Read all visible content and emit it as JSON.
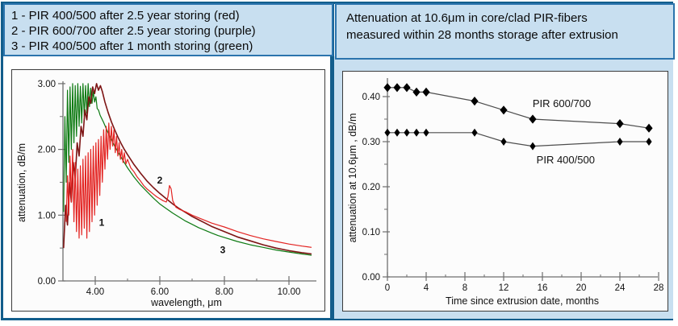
{
  "colors": {
    "background": "#ffffff",
    "cell_blue": "#c8dff0",
    "frame": "#135e8c",
    "header_border": "#2b74ad",
    "panel_border": "#3c3c3c",
    "axis": "#6e6e6e",
    "text": "#111111",
    "series_red": "#e32321",
    "series_maroon": "#7d1414",
    "series_green": "#0d7a12",
    "marker": "#000000",
    "aging_line": "#4d4d4d"
  },
  "header_left": {
    "lines": [
      "1 - PIR 400/500 after 2.5 year storing (red)",
      "2 - PIR 600/700 after 2.5 year storing (purple)",
      "3 - PIR 400/500 after 1 month storing (green)"
    ]
  },
  "header_right": {
    "lines": [
      "Attenuation at 10.6μm in core/clad PIR-fibers",
      "measured within 28 months storage after extrusion"
    ]
  },
  "chart_data": [
    {
      "type": "line",
      "title": "",
      "xlabel": "wavelength, μm",
      "ylabel": "attenuation, dB/m",
      "xlim": [
        2.9,
        10.85
      ],
      "ylim": [
        0,
        3.0
      ],
      "grid": false,
      "x_ticks_major": {
        "values": [
          4,
          6,
          8,
          10
        ],
        "labels": [
          "4.00",
          "6.00",
          "8.00",
          "10.00"
        ]
      },
      "x_ticks_minor": [
        5,
        7,
        9
      ],
      "y_ticks_major": {
        "values": [
          0,
          1,
          2,
          3
        ],
        "labels": [
          "0.00",
          "1.00",
          "2.00",
          "3.00"
        ]
      },
      "y_ticks_minor": [
        0.5,
        1.5,
        2.5
      ],
      "series": [
        {
          "name": "PIR 400/500 after 1 month storing",
          "label": "3",
          "label_pos": [
            7.95,
            0.42
          ],
          "color": "#0d7a12",
          "points": [
            [
              3.02,
              1.05
            ],
            [
              3.06,
              2.5
            ],
            [
              3.1,
              1.5
            ],
            [
              3.14,
              2.9
            ],
            [
              3.18,
              1.8
            ],
            [
              3.22,
              2.95
            ],
            [
              3.26,
              2.0
            ],
            [
              3.3,
              3.0
            ],
            [
              3.34,
              2.1
            ],
            [
              3.38,
              2.97
            ],
            [
              3.42,
              2.2
            ],
            [
              3.46,
              3.0
            ],
            [
              3.5,
              2.35
            ],
            [
              3.54,
              2.96
            ],
            [
              3.58,
              2.4
            ],
            [
              3.62,
              3.0
            ],
            [
              3.66,
              2.5
            ],
            [
              3.7,
              2.97
            ],
            [
              3.74,
              2.55
            ],
            [
              3.78,
              3.0
            ],
            [
              3.82,
              2.65
            ],
            [
              3.86,
              2.93
            ],
            [
              3.9,
              2.7
            ],
            [
              3.94,
              2.88
            ],
            [
              3.98,
              2.72
            ],
            [
              4.02,
              2.8
            ],
            [
              4.06,
              2.62
            ],
            [
              4.1,
              2.6
            ],
            [
              4.15,
              2.52
            ],
            [
              4.25,
              2.42
            ],
            [
              4.4,
              2.25
            ],
            [
              4.6,
              2.05
            ],
            [
              4.8,
              1.88
            ],
            [
              5.0,
              1.72
            ],
            [
              5.2,
              1.58
            ],
            [
              5.4,
              1.46
            ],
            [
              5.6,
              1.36
            ],
            [
              5.8,
              1.26
            ],
            [
              6.0,
              1.17
            ],
            [
              6.2,
              1.1
            ],
            [
              6.4,
              1.03
            ],
            [
              6.6,
              0.97
            ],
            [
              6.8,
              0.91
            ],
            [
              7.0,
              0.86
            ],
            [
              7.2,
              0.81
            ],
            [
              7.4,
              0.77
            ],
            [
              7.6,
              0.73
            ],
            [
              7.8,
              0.69
            ],
            [
              8.0,
              0.66
            ],
            [
              8.4,
              0.6
            ],
            [
              8.8,
              0.55
            ],
            [
              9.2,
              0.51
            ],
            [
              9.6,
              0.47
            ],
            [
              10.0,
              0.44
            ],
            [
              10.4,
              0.41
            ],
            [
              10.7,
              0.39
            ]
          ]
        },
        {
          "name": "PIR 600/700 after 2.5 year storing",
          "label": "2",
          "label_pos": [
            6.0,
            1.48
          ],
          "color": "#7d1414",
          "points": [
            [
              3.02,
              0.5
            ],
            [
              3.08,
              1.15
            ],
            [
              3.14,
              0.85
            ],
            [
              3.2,
              1.5
            ],
            [
              3.26,
              1.2
            ],
            [
              3.32,
              1.8
            ],
            [
              3.38,
              1.55
            ],
            [
              3.44,
              2.1
            ],
            [
              3.5,
              1.9
            ],
            [
              3.56,
              2.35
            ],
            [
              3.62,
              2.2
            ],
            [
              3.68,
              2.6
            ],
            [
              3.74,
              2.45
            ],
            [
              3.8,
              2.8
            ],
            [
              3.86,
              2.7
            ],
            [
              3.92,
              2.95
            ],
            [
              3.98,
              2.85
            ],
            [
              4.04,
              3.0
            ],
            [
              4.1,
              2.9
            ],
            [
              4.16,
              2.97
            ],
            [
              4.22,
              2.88
            ],
            [
              4.3,
              2.72
            ],
            [
              4.4,
              2.56
            ],
            [
              4.5,
              2.42
            ],
            [
              4.6,
              2.3
            ],
            [
              4.7,
              2.19
            ],
            [
              4.8,
              2.09
            ],
            [
              4.9,
              2.0
            ],
            [
              5.0,
              1.92
            ],
            [
              5.2,
              1.77
            ],
            [
              5.4,
              1.64
            ],
            [
              5.6,
              1.52
            ],
            [
              5.8,
              1.42
            ],
            [
              6.0,
              1.33
            ],
            [
              6.2,
              1.25
            ],
            [
              6.4,
              1.17
            ],
            [
              6.6,
              1.1
            ],
            [
              6.8,
              1.04
            ],
            [
              7.0,
              0.98
            ],
            [
              7.2,
              0.93
            ],
            [
              7.4,
              0.88
            ],
            [
              7.6,
              0.83
            ],
            [
              7.8,
              0.79
            ],
            [
              8.0,
              0.75
            ],
            [
              8.4,
              0.67
            ],
            [
              8.8,
              0.61
            ],
            [
              9.2,
              0.55
            ],
            [
              9.6,
              0.5
            ],
            [
              10.0,
              0.46
            ],
            [
              10.4,
              0.43
            ],
            [
              10.7,
              0.41
            ]
          ]
        },
        {
          "name": "PIR 400/500 after 2.5 year storing",
          "label": "1",
          "label_pos": [
            4.2,
            0.84
          ],
          "color": "#e32321",
          "points": [
            [
              3.1,
              0.9
            ],
            [
              3.14,
              1.6
            ],
            [
              3.18,
              1.0
            ],
            [
              3.22,
              1.9
            ],
            [
              3.26,
              1.2
            ],
            [
              3.3,
              2.0
            ],
            [
              3.34,
              0.9
            ],
            [
              3.38,
              1.8
            ],
            [
              3.42,
              0.75
            ],
            [
              3.46,
              1.7
            ],
            [
              3.5,
              0.65
            ],
            [
              3.54,
              1.75
            ],
            [
              3.58,
              0.7
            ],
            [
              3.62,
              1.85
            ],
            [
              3.66,
              0.8
            ],
            [
              3.7,
              1.9
            ],
            [
              3.74,
              0.65
            ],
            [
              3.78,
              1.95
            ],
            [
              3.82,
              0.75
            ],
            [
              3.86,
              2.0
            ],
            [
              3.9,
              0.9
            ],
            [
              3.94,
              2.05
            ],
            [
              3.98,
              1.0
            ],
            [
              4.02,
              2.1
            ],
            [
              4.06,
              1.15
            ],
            [
              4.1,
              2.15
            ],
            [
              4.14,
              1.3
            ],
            [
              4.18,
              2.2
            ],
            [
              4.22,
              1.5
            ],
            [
              4.26,
              2.3
            ],
            [
              4.3,
              1.7
            ],
            [
              4.34,
              2.35
            ],
            [
              4.38,
              1.85
            ],
            [
              4.42,
              2.4
            ],
            [
              4.46,
              2.0
            ],
            [
              4.5,
              2.35
            ],
            [
              4.54,
              2.05
            ],
            [
              4.58,
              2.3
            ],
            [
              4.62,
              1.95
            ],
            [
              4.66,
              2.2
            ],
            [
              4.7,
              1.9
            ],
            [
              4.74,
              2.1
            ],
            [
              4.78,
              1.85
            ],
            [
              4.82,
              2.0
            ],
            [
              4.86,
              1.8
            ],
            [
              4.9,
              1.95
            ],
            [
              4.95,
              1.78
            ],
            [
              5.0,
              1.85
            ],
            [
              5.1,
              1.72
            ],
            [
              5.2,
              1.66
            ],
            [
              5.3,
              1.58
            ],
            [
              5.4,
              1.52
            ],
            [
              5.5,
              1.45
            ],
            [
              5.6,
              1.4
            ],
            [
              5.7,
              1.36
            ],
            [
              5.8,
              1.32
            ],
            [
              5.9,
              1.28
            ],
            [
              6.0,
              1.25
            ],
            [
              6.1,
              1.22
            ],
            [
              6.2,
              1.2
            ],
            [
              6.25,
              1.28
            ],
            [
              6.3,
              1.45
            ],
            [
              6.35,
              1.4
            ],
            [
              6.4,
              1.22
            ],
            [
              6.5,
              1.12
            ],
            [
              6.6,
              1.09
            ],
            [
              6.8,
              1.05
            ],
            [
              7.0,
              1.0
            ],
            [
              7.2,
              0.96
            ],
            [
              7.4,
              0.92
            ],
            [
              7.6,
              0.88
            ],
            [
              7.8,
              0.85
            ],
            [
              8.0,
              0.82
            ],
            [
              8.4,
              0.75
            ],
            [
              8.8,
              0.69
            ],
            [
              9.2,
              0.64
            ],
            [
              9.6,
              0.6
            ],
            [
              10.0,
              0.56
            ],
            [
              10.4,
              0.53
            ],
            [
              10.7,
              0.51
            ]
          ]
        }
      ]
    },
    {
      "type": "scatter",
      "title": "",
      "xlabel": "Time since extrusion date, months",
      "ylabel": "attenuation at 10.6μm , dB/m",
      "xlim": [
        0,
        29
      ],
      "ylim": [
        0,
        0.45
      ],
      "grid": false,
      "x_ticks_major": {
        "values": [
          0,
          4,
          8,
          12,
          16,
          20,
          24,
          28
        ],
        "labels": [
          "0",
          "4",
          "8",
          "12",
          "16",
          "20",
          "24",
          "28"
        ]
      },
      "x_ticks_minor": [
        2,
        6,
        10,
        14,
        18,
        22,
        26
      ],
      "y_ticks_major": {
        "values": [
          0,
          0.1,
          0.2,
          0.3,
          0.4
        ],
        "labels": [
          "0.00",
          "0.10",
          "0.20",
          "0.30",
          "0.40"
        ]
      },
      "y_ticks_minor": [
        0.05,
        0.15,
        0.25,
        0.35
      ],
      "x": [
        0,
        1,
        2,
        3,
        4,
        9,
        12,
        15,
        24,
        27
      ],
      "series": [
        {
          "name": "PIR 600/700",
          "values": [
            0.42,
            0.42,
            0.42,
            0.41,
            0.41,
            0.39,
            0.37,
            0.35,
            0.34,
            0.33
          ],
          "label_pos": [
            18,
            0.377
          ]
        },
        {
          "name": "PIR 400/500",
          "values": [
            0.32,
            0.32,
            0.32,
            0.32,
            0.32,
            0.32,
            0.3,
            0.29,
            0.3,
            0.3
          ],
          "label_pos": [
            18.4,
            0.252
          ]
        }
      ]
    }
  ]
}
